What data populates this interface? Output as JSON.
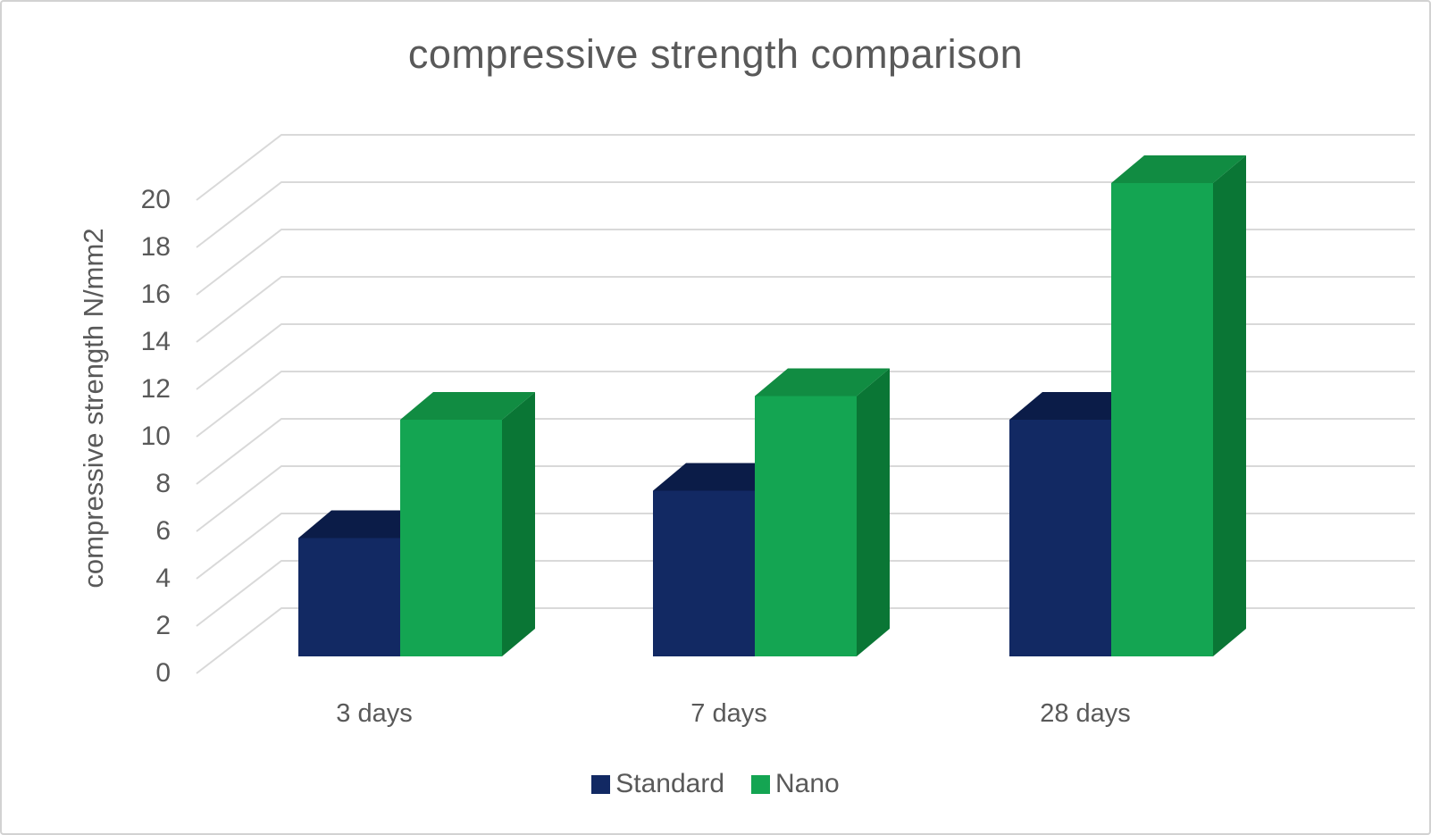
{
  "chart_data": {
    "type": "bar",
    "style": "3d-clustered-column",
    "title": "compressive strength comparison",
    "xlabel": "",
    "ylabel": "compressive strength N/mm2",
    "categories": [
      "3 days",
      "7 days",
      "28 days"
    ],
    "series": [
      {
        "name": "Standard",
        "values": [
          5,
          7,
          10
        ],
        "colors": {
          "front": "#122963",
          "top": "#0b1c48",
          "side": "#0d2154"
        }
      },
      {
        "name": "Nano",
        "values": [
          10,
          11,
          20
        ],
        "colors": {
          "front": "#14a552",
          "top": "#118c42",
          "side": "#0a7635"
        }
      }
    ],
    "ylim": [
      0,
      20
    ],
    "yticks": [
      0,
      2,
      4,
      6,
      8,
      10,
      12,
      14,
      16,
      18,
      20
    ],
    "grid": true,
    "legend_position": "bottom"
  },
  "colors": {
    "gridline": "#d9d9d9",
    "text": "#595959",
    "background": "#ffffff",
    "frame_border": "#d2d2d2"
  }
}
